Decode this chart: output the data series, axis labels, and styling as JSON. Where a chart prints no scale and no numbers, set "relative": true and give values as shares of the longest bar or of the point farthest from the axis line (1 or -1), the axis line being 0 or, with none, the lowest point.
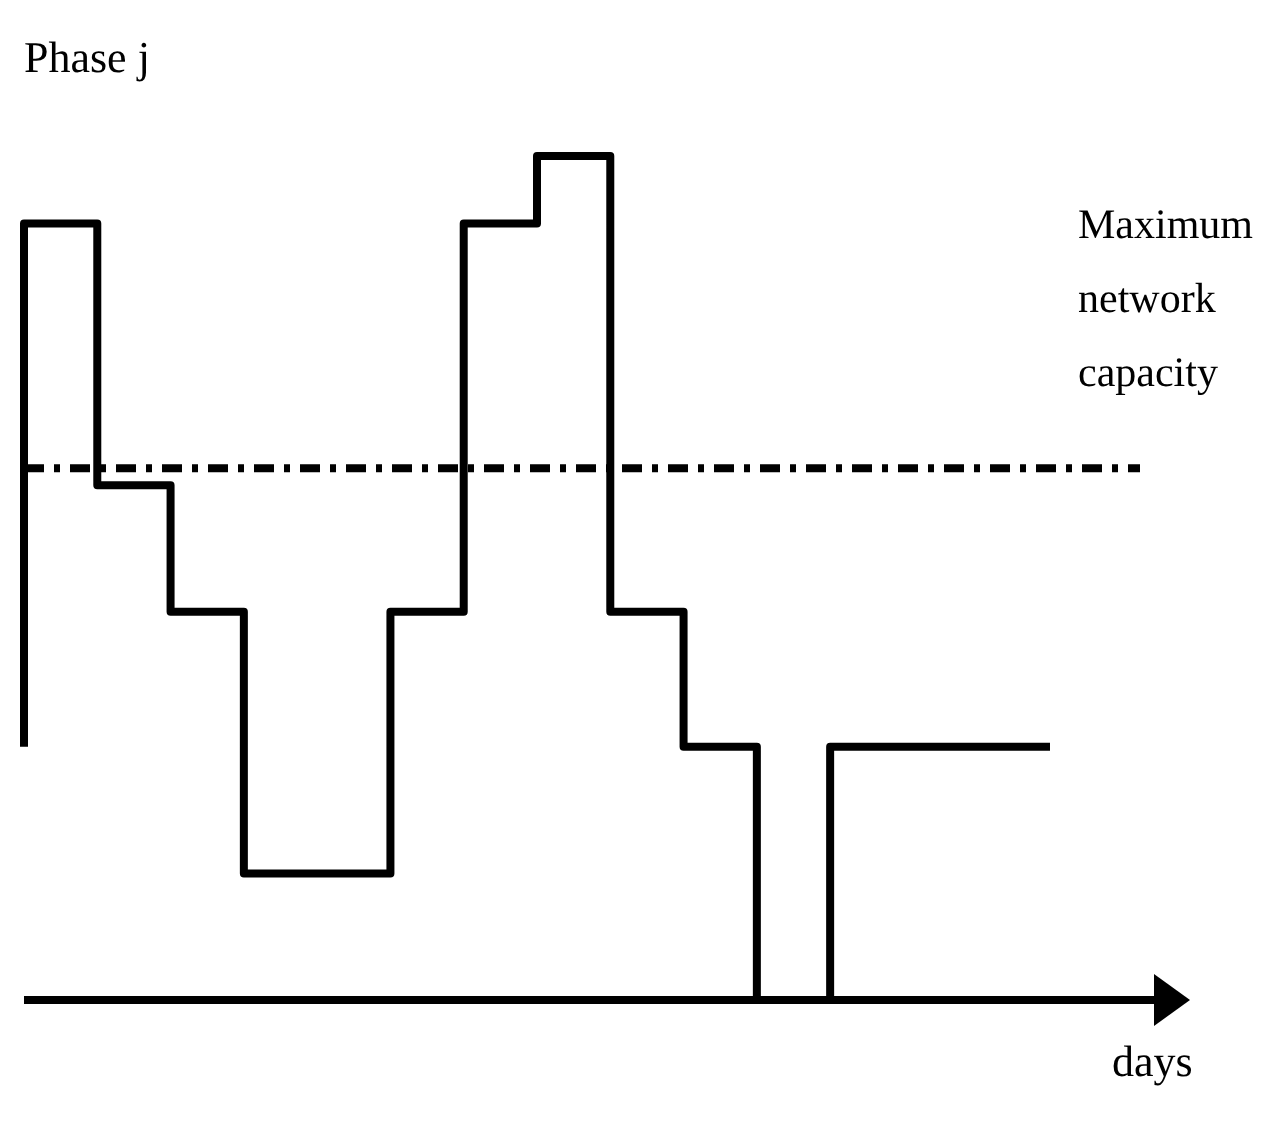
{
  "chart_data": {
    "type": "step",
    "relative": true,
    "ylabel": "Phase j",
    "xlabel": "days",
    "categories": [
      null,
      null,
      null,
      null,
      null,
      null,
      null,
      null,
      null,
      null,
      null,
      null,
      null,
      null,
      null
    ],
    "series": [
      {
        "color": "#000000",
        "values": [
          0.3,
          0.92,
          0.61,
          0.46,
          0.15,
          0.15,
          0.46,
          0.92,
          1,
          0.46,
          0.3,
          0,
          0.3,
          0.3,
          0.3
        ]
      }
    ],
    "ref_lines": [
      {
        "axis": "y",
        "value": 0.63,
        "label": "Maximum network capacity",
        "color": "#000000",
        "line_style": "dashed"
      }
    ],
    "legend": false,
    "tick_labels": false
  }
}
